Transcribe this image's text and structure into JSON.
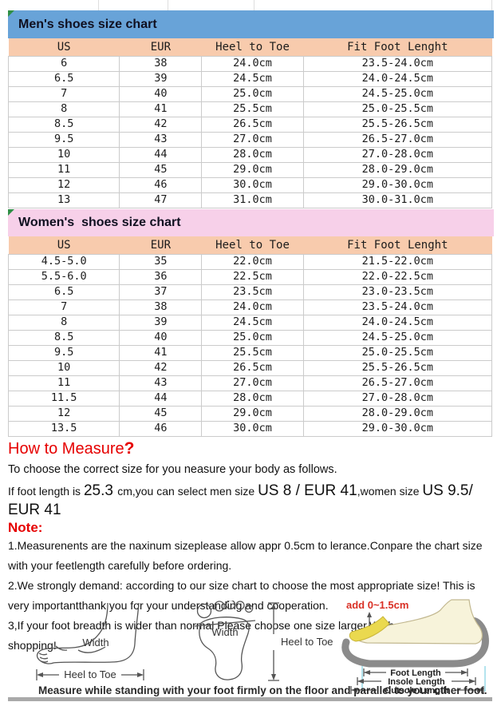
{
  "colors": {
    "mens_band": "#68a3d8",
    "womens_band": "#f7d0e9",
    "table_header": "#f8cbad",
    "accent_red": "#e60000",
    "marker_green": "#2f8f46",
    "insole_yellow": "#ead94f",
    "outsole_gray": "#8b8b8b"
  },
  "mens_chart": {
    "title": "Men's shoes size chart",
    "columns": [
      "US",
      "EUR",
      "Heel to Toe",
      "Fit Foot Lenght"
    ],
    "rows": [
      [
        "6",
        "38",
        "24.0cm",
        "23.5-24.0cm"
      ],
      [
        "6.5",
        "39",
        "24.5cm",
        "24.0-24.5cm"
      ],
      [
        "7",
        "40",
        "25.0cm",
        "24.5-25.0cm"
      ],
      [
        "8",
        "41",
        "25.5cm",
        "25.0-25.5cm"
      ],
      [
        "8.5",
        "42",
        "26.5cm",
        "25.5-26.5cm"
      ],
      [
        "9.5",
        "43",
        "27.0cm",
        "26.5-27.0cm"
      ],
      [
        "10",
        "44",
        "28.0cm",
        "27.0-28.0cm"
      ],
      [
        "11",
        "45",
        "29.0cm",
        "28.0-29.0cm"
      ],
      [
        "12",
        "46",
        "30.0cm",
        "29.0-30.0cm"
      ],
      [
        "13",
        "47",
        "31.0cm",
        "30.0-31.0cm"
      ]
    ]
  },
  "womens_chart": {
    "title": "Women's  shoes size chart",
    "columns": [
      "US",
      "EUR",
      "Heel to Toe",
      "Fit Foot Lenght"
    ],
    "rows": [
      [
        "4.5-5.0",
        "35",
        "22.0cm",
        "21.5-22.0cm"
      ],
      [
        "5.5-6.0",
        "36",
        "22.5cm",
        "22.0-22.5cm"
      ],
      [
        "6.5",
        "37",
        "23.5cm",
        "23.0-23.5cm"
      ],
      [
        "7",
        "38",
        "24.0cm",
        "23.5-24.0cm"
      ],
      [
        "8",
        "39",
        "24.5cm",
        "24.0-24.5cm"
      ],
      [
        "8.5",
        "40",
        "25.0cm",
        "24.5-25.0cm"
      ],
      [
        "9.5",
        "41",
        "25.5cm",
        "25.0-25.5cm"
      ],
      [
        "10",
        "42",
        "26.5cm",
        "25.5-26.5cm"
      ],
      [
        "11",
        "43",
        "27.0cm",
        "26.5-27.0cm"
      ],
      [
        "11.5",
        "44",
        "28.0cm",
        "27.0-28.0cm"
      ],
      [
        "12",
        "45",
        "29.0cm",
        "28.0-29.0cm"
      ],
      [
        "13.5",
        "46",
        "30.0cm",
        "29.0-30.0cm"
      ]
    ]
  },
  "measure": {
    "title": "How to Measure",
    "question_mark": "?",
    "intro": "To choose the correct size for you neasure your body as follows.",
    "example_parts": [
      {
        "text": "If foot length is ",
        "big": false
      },
      {
        "text": "25.3 ",
        "big": true
      },
      {
        "text": "cm,you can select men size ",
        "big": false
      },
      {
        "text": "US 8 / EUR 41",
        "big": true
      },
      {
        "text": ",women size ",
        "big": false
      },
      {
        "text": "US 9.5/ EUR 41",
        "big": true
      }
    ],
    "note_label": "Note:",
    "notes": [
      "1.Measurenents are the naxinum sizeplease allow appr 0.5cm to lerance.Conpare the chart size with  your feetlength carefully before ordering.",
      "2.We strongly demand: according to our size chart to choose the most appropriate size! This is very importantthank you for your understanding and cooperation.",
      "3,If your foot breadth is wider than normal Please choose one size larger.Wish you a happy shopping!"
    ]
  },
  "diagrams": {
    "side_view": {
      "width_label": "Width",
      "heel_to_toe_label": "Heel to Toe"
    },
    "footprint": {
      "width_label": "Width",
      "heel_to_toe_label": "Heel to Toe"
    },
    "shoe": {
      "add_label": "add 0~1.5cm",
      "foot_length_label": "Foot Length",
      "insole_length_label": "Insole Length",
      "outsole_length_label": "Outsole Length"
    }
  },
  "footer": {
    "caption": "Measure while standing with your foot firmly on the floor and parallel to your other foot."
  }
}
